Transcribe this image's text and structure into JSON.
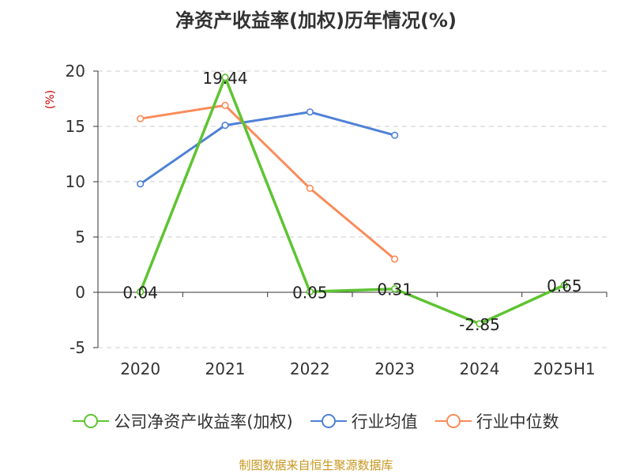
{
  "chart_data": {
    "type": "line",
    "title": "净资产收益率(加权)历年情况(%)",
    "ylabel": "(%)",
    "categories": [
      "2020",
      "2021",
      "2022",
      "2023",
      "2024",
      "2025H1"
    ],
    "ylim": [
      -5,
      20
    ],
    "yticks": [
      -5,
      0,
      5,
      10,
      15,
      20
    ],
    "grid": true,
    "legend_position": "bottom",
    "series": [
      {
        "name": "公司净资产收益率(加权)",
        "color": "#5ec431",
        "values": [
          0.04,
          19.44,
          0.05,
          0.31,
          -2.85,
          0.65
        ],
        "labels": [
          "0.04",
          "19.44",
          "0.05",
          "0.31",
          "-2.85",
          "0.65"
        ]
      },
      {
        "name": "行业均值",
        "color": "#4f81d6",
        "values": [
          9.8,
          15.1,
          16.3,
          14.2,
          null,
          null
        ]
      },
      {
        "name": "行业中位数",
        "color": "#f98c5a",
        "values": [
          15.7,
          16.9,
          9.4,
          3.0,
          null,
          null
        ]
      }
    ]
  },
  "source_text": "制图数据来自恒生聚源数据库"
}
